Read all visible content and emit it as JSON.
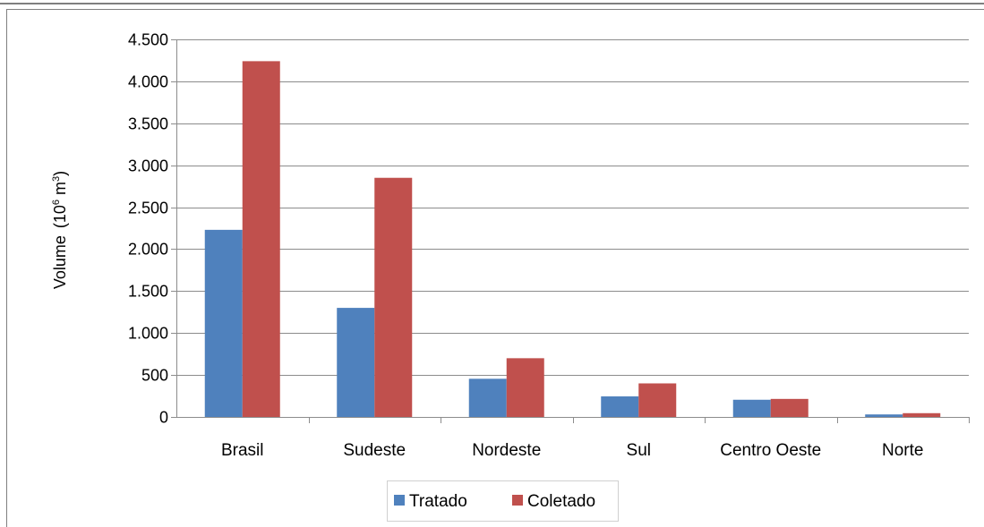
{
  "chart_data": {
    "type": "bar",
    "title": "",
    "xlabel": "",
    "ylabel": "Volume",
    "ylabel_unit_prefix": "(10",
    "ylabel_unit_exp1": "6",
    "ylabel_unit_mid": " m",
    "ylabel_unit_exp2": "3",
    "ylabel_unit_suffix": ")",
    "categories": [
      "Brasil",
      "Sudeste",
      "Nordeste",
      "Sul",
      "Centro Oeste",
      "Norte"
    ],
    "series": [
      {
        "name": "Tratado",
        "color": "#4F81BD",
        "values": [
          2230,
          1300,
          455,
          245,
          205,
          30
        ]
      },
      {
        "name": "Coletado",
        "color": "#C0504D",
        "values": [
          4240,
          2850,
          700,
          400,
          215,
          45
        ]
      }
    ],
    "ylim": [
      0,
      4500
    ],
    "yticks": [
      0,
      500,
      1000,
      1500,
      2000,
      2500,
      3000,
      3500,
      4000,
      4500
    ],
    "ytick_labels": [
      "0",
      "500",
      "1.000",
      "1.500",
      "2.000",
      "2.500",
      "3.000",
      "3.500",
      "4.000",
      "4.500"
    ],
    "grid": true,
    "legend_position": "bottom"
  }
}
